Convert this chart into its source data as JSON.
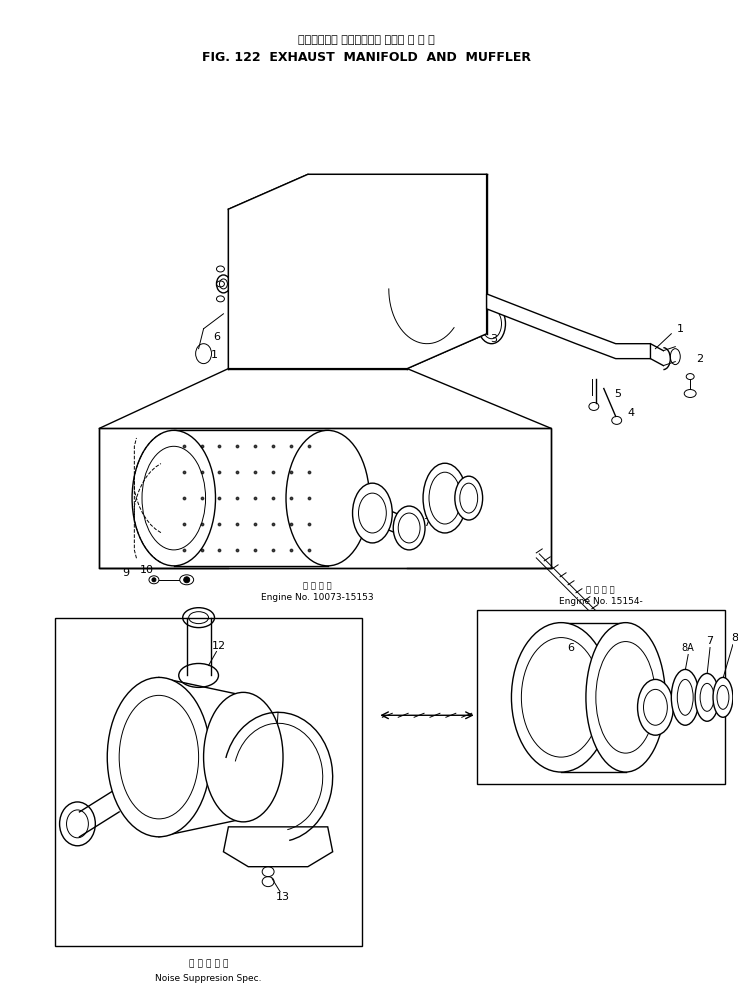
{
  "title_jp": "エキゾースト マニホールド および マ フ ラ",
  "title_en": "FIG. 122  EXHAUST  MANIFOLD  AND  MUFFLER",
  "engine_no_left_jp": "適 用 号 機",
  "engine_no_left": "Engine No. 10073-15153",
  "engine_no_right_jp": "適 用 号 機",
  "engine_no_right": "Engine No. 15154-",
  "noise_suppression_jp": "低 騒 音 仕 様",
  "noise_suppression": "Noise Suppresion Spec.",
  "bg_color": "#ffffff",
  "line_color": "#000000",
  "figsize": [
    7.38,
    9.83
  ],
  "dpi": 100
}
